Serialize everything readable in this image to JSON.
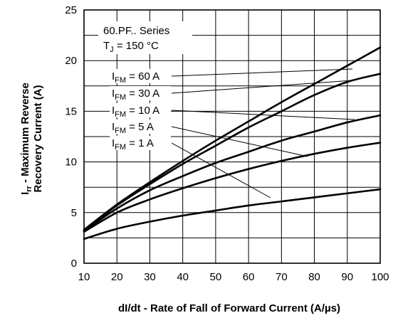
{
  "chart_data": {
    "type": "line",
    "xlabel": "dI/dt - Rate of Fall of Forward Current (A/µs)",
    "ylabel_parts": {
      "prefix": "I",
      "sub": "rr",
      "line1": " - Maximum Reverse",
      "line2": "Recovery Current (A)"
    },
    "xlim": [
      10,
      100
    ],
    "ylim": [
      0,
      25
    ],
    "xticks": [
      10,
      20,
      30,
      40,
      50,
      60,
      70,
      80,
      90,
      100
    ],
    "yticks": [
      0,
      5,
      10,
      15,
      20,
      25
    ],
    "grid": true,
    "annotations": {
      "series_label": "60.PF.. Series",
      "temperature": {
        "prefix": "T",
        "sub": "J",
        "rest": " = 150 °C"
      }
    },
    "x": [
      10,
      20,
      30,
      40,
      50,
      60,
      70,
      80,
      90,
      100
    ],
    "series": [
      {
        "name": "I_FM = 60 A",
        "label": {
          "prefix": "I",
          "sub": "FM",
          "rest": " = 60 A"
        },
        "values": [
          3.3,
          5.8,
          8.0,
          10.1,
          12.1,
          14.0,
          15.9,
          17.7,
          19.5,
          21.3
        ]
      },
      {
        "name": "I_FM = 30 A",
        "label": {
          "prefix": "I",
          "sub": "FM",
          "rest": " = 30 A"
        },
        "values": [
          3.25,
          5.7,
          7.8,
          9.8,
          11.6,
          13.4,
          15.0,
          16.6,
          17.9,
          18.7
        ]
      },
      {
        "name": "I_FM = 10 A",
        "label": {
          "prefix": "I",
          "sub": "FM",
          "rest": " = 10 A"
        },
        "values": [
          3.2,
          5.4,
          7.2,
          8.6,
          9.9,
          11.0,
          12.1,
          13.0,
          13.9,
          14.6
        ]
      },
      {
        "name": "I_FM = 5 A",
        "label": {
          "prefix": "I",
          "sub": "FM",
          "rest": " = 5 A"
        },
        "values": [
          3.1,
          5.0,
          6.3,
          7.4,
          8.4,
          9.3,
          10.1,
          10.8,
          11.4,
          11.9
        ]
      },
      {
        "name": "I_FM = 1 A",
        "label": {
          "prefix": "I",
          "sub": "FM",
          "rest": " = 1 A"
        },
        "values": [
          2.4,
          3.4,
          4.1,
          4.7,
          5.2,
          5.7,
          6.1,
          6.5,
          6.9,
          7.3
        ]
      }
    ]
  }
}
